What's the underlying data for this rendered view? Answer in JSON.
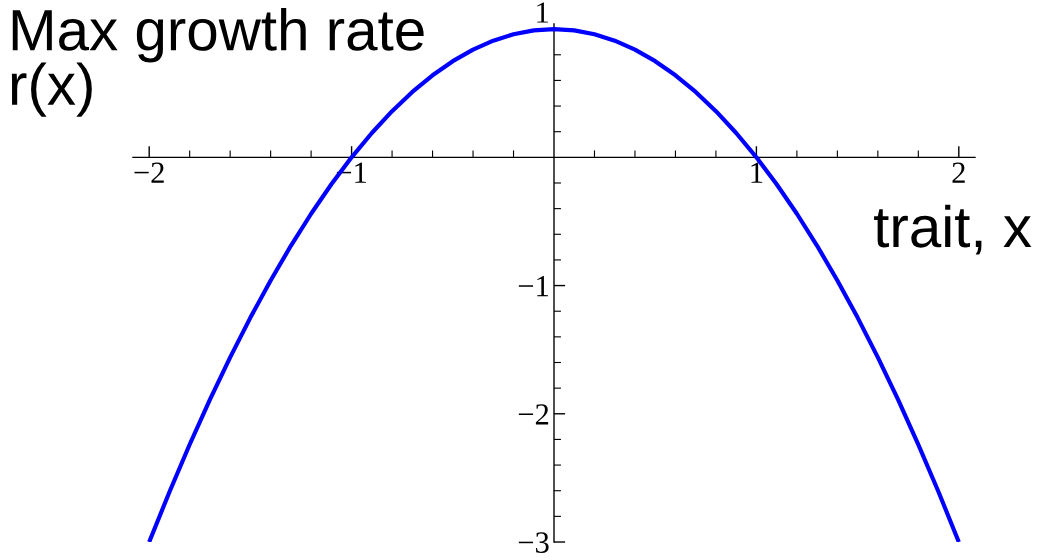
{
  "chart_data": {
    "type": "line",
    "xlabel": "trait, x",
    "ylabel": "Max growth rate\nr(x)",
    "x": [
      -2,
      -1.9,
      -1.8,
      -1.7,
      -1.6,
      -1.5,
      -1.4,
      -1.3,
      -1.2,
      -1.1,
      -1,
      -0.9,
      -0.8,
      -0.7,
      -0.6,
      -0.5,
      -0.4,
      -0.3,
      -0.2,
      -0.1,
      0,
      0.1,
      0.2,
      0.3,
      0.4,
      0.5,
      0.6,
      0.7,
      0.8,
      0.9,
      1,
      1.1,
      1.2,
      1.3,
      1.4,
      1.5,
      1.6,
      1.7,
      1.8,
      1.9,
      2
    ],
    "series": [
      {
        "color": "#0000ff",
        "values": [
          -3,
          -2.61,
          -2.24,
          -1.89,
          -1.56,
          -1.25,
          -0.96,
          -0.69,
          -0.44,
          -0.21,
          0,
          0.19,
          0.36,
          0.51,
          0.64,
          0.75,
          0.84,
          0.91,
          0.96,
          0.99,
          1,
          0.99,
          0.96,
          0.91,
          0.84,
          0.75,
          0.64,
          0.51,
          0.36,
          0.19,
          0,
          -0.21,
          -0.44,
          -0.69,
          -0.96,
          -1.25,
          -1.56,
          -1.89,
          -2.24,
          -2.61,
          -3
        ]
      }
    ],
    "xlim": [
      -2.08,
      2.08
    ],
    "ylim": [
      -3,
      1.04
    ],
    "xticks": [
      {
        "value": -2,
        "label": "−2"
      },
      {
        "value": -1.8,
        "label": null
      },
      {
        "value": -1.6,
        "label": null
      },
      {
        "value": -1.4,
        "label": null
      },
      {
        "value": -1.2,
        "label": null
      },
      {
        "value": -1,
        "label": "−1"
      },
      {
        "value": -0.8,
        "label": null
      },
      {
        "value": -0.6,
        "label": null
      },
      {
        "value": -0.4,
        "label": null
      },
      {
        "value": -0.2,
        "label": null
      },
      {
        "value": 0.2,
        "label": null
      },
      {
        "value": 0.4,
        "label": null
      },
      {
        "value": 0.6,
        "label": null
      },
      {
        "value": 0.8,
        "label": null
      },
      1,
      {
        "value": 1.2,
        "label": null
      },
      {
        "value": 1.4,
        "label": null
      },
      {
        "value": 1.6,
        "label": null
      },
      {
        "value": 1.8,
        "label": null
      },
      2
    ],
    "yticks": [
      {
        "value": -3,
        "label": "−3"
      },
      {
        "value": -2.8,
        "label": null
      },
      {
        "value": -2.6,
        "label": null
      },
      {
        "value": -2.4,
        "label": null
      },
      {
        "value": -2.2,
        "label": null
      },
      {
        "value": -2,
        "label": "−2"
      },
      {
        "value": -1.8,
        "label": null
      },
      {
        "value": -1.6,
        "label": null
      },
      {
        "value": -1.4,
        "label": null
      },
      {
        "value": -1.2,
        "label": null
      },
      {
        "value": -1,
        "label": "−1"
      },
      {
        "value": -0.8,
        "label": null
      },
      {
        "value": -0.6,
        "label": null
      },
      {
        "value": -0.4,
        "label": null
      },
      {
        "value": -0.2,
        "label": null
      },
      {
        "value": 0.2,
        "label": null
      },
      {
        "value": 0.4,
        "label": null
      },
      {
        "value": 0.6,
        "label": null
      },
      {
        "value": 0.8,
        "label": null
      },
      1
    ],
    "line_style": "solid"
  }
}
